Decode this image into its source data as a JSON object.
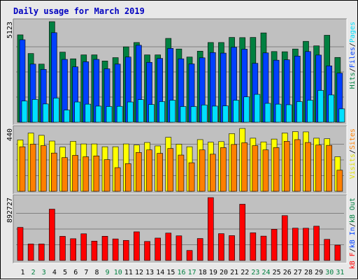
{
  "title": "Daily usage for March 2019",
  "chart_data": {
    "type": "bar",
    "categories": [
      "1",
      "2",
      "3",
      "4",
      "5",
      "6",
      "7",
      "8",
      "9",
      "10",
      "11",
      "12",
      "13",
      "14",
      "15",
      "16",
      "17",
      "18",
      "19",
      "20",
      "21",
      "22",
      "23",
      "24",
      "25",
      "26",
      "27",
      "28",
      "29",
      "30",
      "31"
    ],
    "weekend_days": [
      2,
      3,
      9,
      10,
      16,
      17,
      23,
      24,
      30,
      31
    ],
    "panels": [
      {
        "name": "hits",
        "max_label": "5123",
        "max": 5123,
        "legend": [
          {
            "text": "Hits",
            "color": "#008040"
          },
          {
            "text": "/",
            "color": "#000000"
          },
          {
            "text": "Files",
            "color": "#0040ff"
          },
          {
            "text": "/",
            "color": "#000000"
          },
          {
            "text": "Pages",
            "color": "#00e0ff"
          }
        ],
        "series": [
          {
            "name": "Hits",
            "color": "#008040",
            "values": [
              4450,
              3500,
              2960,
              5123,
              3570,
              3230,
              3430,
              3430,
              3120,
              3290,
              3840,
              4060,
              3430,
              3430,
              4270,
              3730,
              3320,
              3620,
              4060,
              4060,
              4320,
              4310,
              4320,
              4550,
              3600,
              3590,
              3730,
              4120,
              3890,
              4430,
              3300
            ]
          },
          {
            "name": "Files",
            "color": "#0040ff",
            "values": [
              4200,
              2960,
              2690,
              4560,
              3200,
              2820,
              3080,
              3200,
              2720,
              2960,
              3320,
              3920,
              3050,
              3250,
              3760,
              3230,
              2970,
              3280,
              3550,
              3520,
              3820,
              3720,
              3000,
              3530,
              3160,
              3180,
              3370,
              3600,
              3420,
              2870,
              2500
            ]
          },
          {
            "name": "Pages",
            "color": "#00e0ff",
            "values": [
              1080,
              1160,
              930,
              1230,
              620,
              1030,
              920,
              820,
              800,
              810,
              1030,
              1150,
              900,
              1050,
              1120,
              800,
              800,
              880,
              820,
              830,
              1120,
              1290,
              1420,
              960,
              920,
              890,
              1050,
              1120,
              1620,
              1390,
              680
            ]
          }
        ]
      },
      {
        "name": "visits",
        "max_label": "440",
        "max": 440,
        "legend": [
          {
            "text": "Visits",
            "color": "#e0e000"
          },
          {
            "text": "/",
            "color": "#000000"
          },
          {
            "text": "Sites",
            "color": "#ff8000"
          }
        ],
        "series": [
          {
            "name": "Visits",
            "color": "#ffff00",
            "values": [
              360,
              408,
              392,
              352,
              310,
              350,
              332,
              332,
              312,
              312,
              332,
              324,
              342,
              318,
              378,
              330,
              312,
              362,
              344,
              348,
              404,
              440,
              372,
              346,
              366,
              408,
              418,
              416,
              372,
              368,
              242
            ]
          },
          {
            "name": "Sites",
            "color": "#ff8000",
            "values": [
              312,
              330,
              320,
              268,
              236,
              252,
              242,
              248,
              222,
              166,
              194,
              272,
              290,
              266,
              300,
              254,
              200,
              290,
              260,
              306,
              328,
              340,
              320,
              290,
              306,
              350,
              362,
              342,
              324,
              322,
              148
            ]
          }
        ]
      },
      {
        "name": "kbytes",
        "max_label": "892727",
        "max": 892727,
        "legend": [
          {
            "text": "kB F",
            "color": "#ff0000"
          },
          {
            "text": "/",
            "color": "#000000"
          },
          {
            "text": "kB In",
            "color": "#0040ff"
          },
          {
            "text": "/",
            "color": "#000000"
          },
          {
            "text": "kB Out",
            "color": "#008040"
          }
        ],
        "series": [
          {
            "name": "kB F",
            "color": "#ff0000",
            "values": [
              470000,
              234000,
              234000,
              729000,
              343000,
              309000,
              379000,
              275000,
              344000,
              306000,
              285000,
              407000,
              270000,
              318000,
              389000,
              350000,
              142000,
              312000,
              892727,
              381000,
              353000,
              799000,
              393000,
              346000,
              443000,
              637000,
              459000,
              458000,
              487000,
              300000,
              218000
            ]
          }
        ]
      }
    ]
  }
}
